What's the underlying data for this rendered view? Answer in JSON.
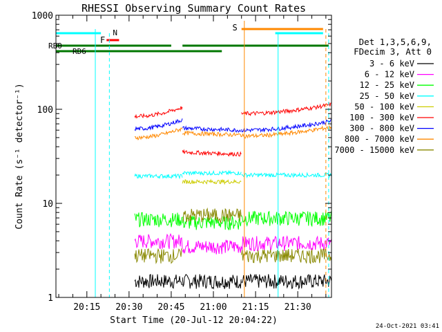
{
  "chart_data": {
    "type": "line",
    "title": "RHESSI Observing Summary Count Rates",
    "xlabel": "Start Time (20-Jul-12 20:04:22)",
    "ylabel": "Count Rate (s⁻¹ detector⁻¹)",
    "y_scale": "log",
    "ylim": [
      1,
      1000
    ],
    "xlim": [
      "20:04",
      "21:42"
    ],
    "x_tick_labels": [
      "20:15",
      "20:30",
      "20:45",
      "21:00",
      "21:15",
      "21:30"
    ],
    "y_tick_labels": [
      "1",
      "10",
      "100",
      "1000"
    ],
    "grid": false,
    "legend_placement": "right",
    "legend_header": [
      "Det 1,3,5,6,9,",
      "FDecim 3, Att 0"
    ],
    "timestamp": "24-Oct-2021 03:41",
    "segments": [
      [
        "20:08",
        "20:18"
      ],
      [
        "20:18",
        "20:32"
      ],
      [
        "20:32",
        "20:49"
      ],
      [
        "20:49",
        "21:10"
      ],
      [
        "21:10",
        "21:42"
      ]
    ],
    "series": [
      {
        "name": "3 - 6 keV",
        "color": "#000000",
        "values": [
          null,
          null,
          1.5,
          1.5,
          1.5
        ]
      },
      {
        "name": "6 - 12 keV",
        "color": "#ff00ff",
        "values": [
          null,
          null,
          4.0,
          3.5,
          3.8
        ]
      },
      {
        "name": "12 - 25 keV",
        "color": "#00ff00",
        "values": [
          null,
          null,
          6.8,
          6.3,
          7.0
        ]
      },
      {
        "name": "25 - 50 keV",
        "color": "#00ffff",
        "values": [
          null,
          null,
          19.5,
          21.0,
          20.0
        ]
      },
      {
        "name": "50 - 100 keV",
        "color": "#cccc00",
        "values": [
          null,
          null,
          null,
          17.0,
          null
        ]
      },
      {
        "name": "100 - 300 keV",
        "color": "#ff0000",
        "values": [
          null,
          null,
          84.0,
          35.0,
          90.0
        ]
      },
      {
        "name": "300 - 800 keV",
        "color": "#0000ff",
        "values": [
          null,
          null,
          62.0,
          63.0,
          60.0
        ]
      },
      {
        "name": "800 - 7000 keV",
        "color": "#ff8800",
        "values": [
          null,
          null,
          50.0,
          56.0,
          52.0
        ]
      },
      {
        "name": "7000 - 15000 keV",
        "color": "#888800",
        "values": [
          null,
          null,
          2.8,
          7.5,
          2.8
        ]
      }
    ],
    "flags": [
      {
        "label": "N",
        "color": "#00ffff"
      },
      {
        "label": "F",
        "color": "#ff0000"
      },
      {
        "label": "S",
        "color": "#ff8800"
      },
      {
        "label": "RB0",
        "color": "#007700"
      },
      {
        "label": "RD6",
        "color": "#007700"
      }
    ]
  }
}
